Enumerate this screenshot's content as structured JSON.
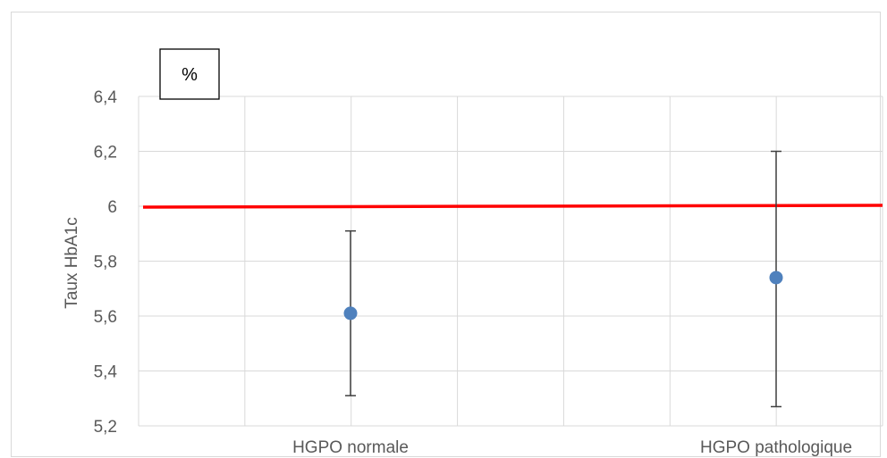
{
  "chart_data": {
    "type": "scatter",
    "unit_label": "%",
    "ylabel": "Taux HbA1c",
    "ylim": [
      5.2,
      6.4
    ],
    "yticks": [
      "5,2",
      "5,4",
      "5,6",
      "5,8",
      "6",
      "6,2",
      "6,4"
    ],
    "yticks_values": [
      5.2,
      5.4,
      5.6,
      5.8,
      6.0,
      6.2,
      6.4
    ],
    "categories": [
      "HGPO normale",
      "HGPO pathologique"
    ],
    "points": [
      {
        "category": "HGPO normale",
        "y": 5.61,
        "error_low": 5.31,
        "error_high": 5.91
      },
      {
        "category": "HGPO pathologique",
        "y": 5.74,
        "error_low": 5.27,
        "error_high": 6.2
      }
    ],
    "reference_line": {
      "y": 6.0,
      "color": "#ff0000"
    },
    "point_color": "#4f81bd",
    "grid": true
  }
}
